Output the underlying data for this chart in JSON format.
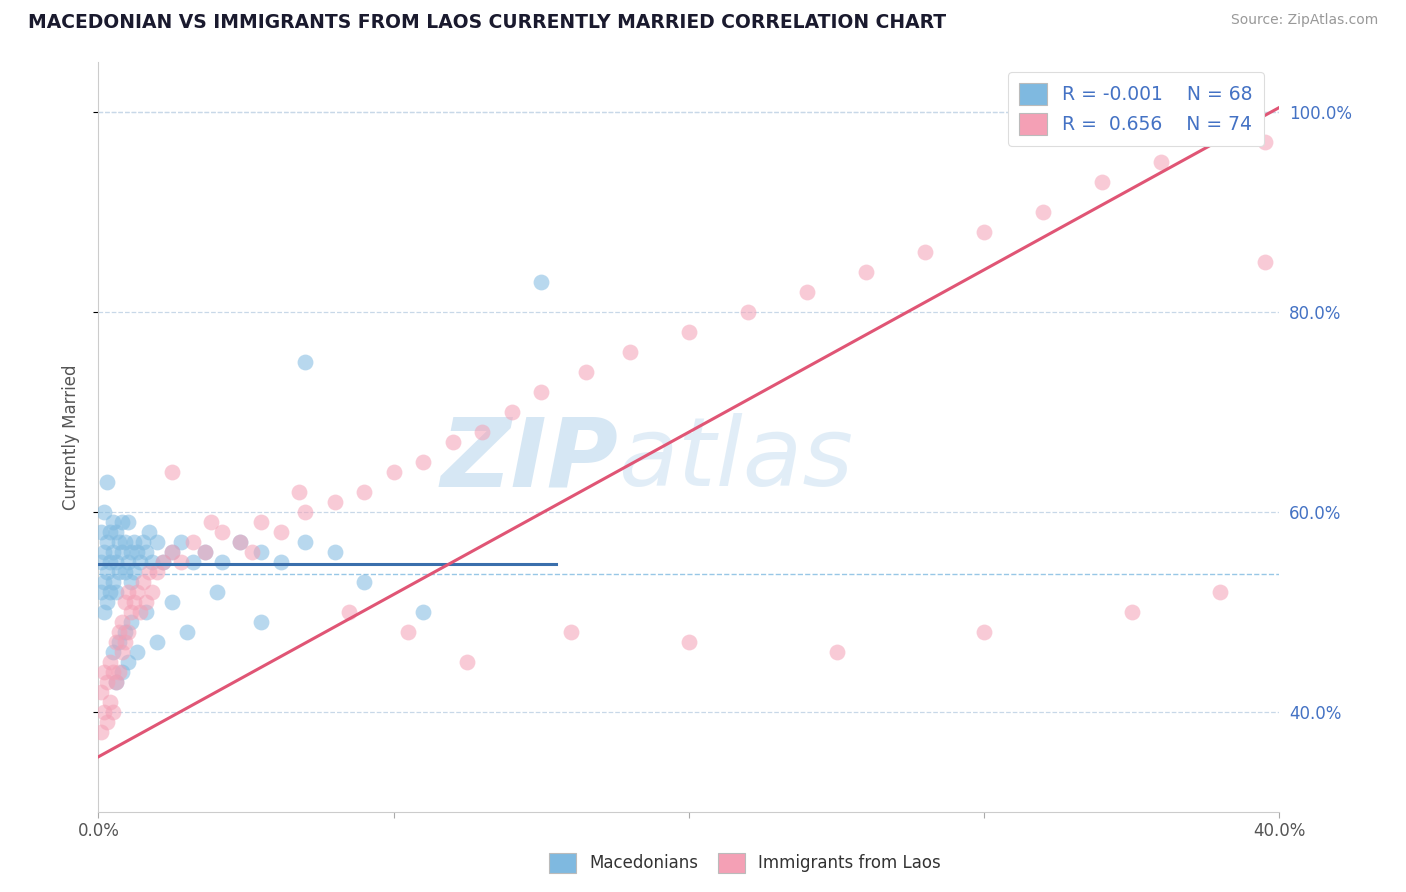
{
  "title": "MACEDONIAN VS IMMIGRANTS FROM LAOS CURRENTLY MARRIED CORRELATION CHART",
  "source": "Source: ZipAtlas.com",
  "ylabel": "Currently Married",
  "xlim": [
    0.0,
    0.4
  ],
  "ylim": [
    0.3,
    1.05
  ],
  "blue_R": -0.001,
  "blue_N": 68,
  "pink_R": 0.656,
  "pink_N": 74,
  "blue_color": "#7fb9e0",
  "pink_color": "#f4a0b5",
  "blue_line_color": "#3a6fac",
  "pink_line_color": "#e05575",
  "dashed_line_color": "#7fb9e0",
  "dashed_line_y": 0.538,
  "blue_line_xmax": 0.155,
  "pink_line_x0": 0.0,
  "pink_line_x1": 0.4,
  "pink_line_y0": 0.355,
  "pink_line_y1": 1.005,
  "blue_line_y": 0.548,
  "watermark_zip": "ZIP",
  "watermark_atlas": "atlas",
  "legend_blue_label": "Macedonians",
  "legend_pink_label": "Immigrants from Laos",
  "background_color": "#ffffff",
  "grid_color": "#c8d8e8",
  "ytick_color": "#4472c4",
  "legend_text_color": "#4472c4",
  "source_color": "#999999",
  "ylabel_color": "#555555",
  "xtick_color": "#555555",
  "blue_x": [
    0.001,
    0.001,
    0.001,
    0.002,
    0.002,
    0.002,
    0.002,
    0.003,
    0.003,
    0.003,
    0.003,
    0.004,
    0.004,
    0.004,
    0.005,
    0.005,
    0.005,
    0.006,
    0.006,
    0.006,
    0.007,
    0.007,
    0.008,
    0.008,
    0.009,
    0.009,
    0.01,
    0.01,
    0.011,
    0.011,
    0.012,
    0.012,
    0.013,
    0.014,
    0.015,
    0.016,
    0.017,
    0.018,
    0.02,
    0.022,
    0.025,
    0.028,
    0.032,
    0.036,
    0.042,
    0.048,
    0.055,
    0.062,
    0.07,
    0.08,
    0.005,
    0.006,
    0.007,
    0.008,
    0.009,
    0.01,
    0.011,
    0.013,
    0.016,
    0.02,
    0.025,
    0.03,
    0.04,
    0.055,
    0.07,
    0.09,
    0.11,
    0.15
  ],
  "blue_y": [
    0.55,
    0.52,
    0.58,
    0.53,
    0.56,
    0.5,
    0.6,
    0.54,
    0.57,
    0.51,
    0.63,
    0.55,
    0.58,
    0.52,
    0.56,
    0.53,
    0.59,
    0.55,
    0.58,
    0.52,
    0.57,
    0.54,
    0.56,
    0.59,
    0.54,
    0.57,
    0.55,
    0.59,
    0.56,
    0.53,
    0.57,
    0.54,
    0.56,
    0.55,
    0.57,
    0.56,
    0.58,
    0.55,
    0.57,
    0.55,
    0.56,
    0.57,
    0.55,
    0.56,
    0.55,
    0.57,
    0.56,
    0.55,
    0.57,
    0.56,
    0.46,
    0.43,
    0.47,
    0.44,
    0.48,
    0.45,
    0.49,
    0.46,
    0.5,
    0.47,
    0.51,
    0.48,
    0.52,
    0.49,
    0.75,
    0.53,
    0.5,
    0.83
  ],
  "pink_x": [
    0.001,
    0.001,
    0.002,
    0.002,
    0.003,
    0.003,
    0.004,
    0.004,
    0.005,
    0.005,
    0.006,
    0.006,
    0.007,
    0.007,
    0.008,
    0.008,
    0.009,
    0.009,
    0.01,
    0.01,
    0.011,
    0.012,
    0.013,
    0.014,
    0.015,
    0.016,
    0.017,
    0.018,
    0.02,
    0.022,
    0.025,
    0.028,
    0.032,
    0.036,
    0.042,
    0.048,
    0.055,
    0.062,
    0.07,
    0.08,
    0.09,
    0.1,
    0.11,
    0.12,
    0.13,
    0.14,
    0.15,
    0.165,
    0.18,
    0.2,
    0.22,
    0.24,
    0.26,
    0.28,
    0.3,
    0.32,
    0.34,
    0.36,
    0.38,
    0.395,
    0.025,
    0.038,
    0.052,
    0.068,
    0.085,
    0.105,
    0.125,
    0.16,
    0.2,
    0.25,
    0.3,
    0.35,
    0.38,
    0.395
  ],
  "pink_y": [
    0.42,
    0.38,
    0.44,
    0.4,
    0.43,
    0.39,
    0.45,
    0.41,
    0.44,
    0.4,
    0.43,
    0.47,
    0.44,
    0.48,
    0.46,
    0.49,
    0.47,
    0.51,
    0.48,
    0.52,
    0.5,
    0.51,
    0.52,
    0.5,
    0.53,
    0.51,
    0.54,
    0.52,
    0.54,
    0.55,
    0.56,
    0.55,
    0.57,
    0.56,
    0.58,
    0.57,
    0.59,
    0.58,
    0.6,
    0.61,
    0.62,
    0.64,
    0.65,
    0.67,
    0.68,
    0.7,
    0.72,
    0.74,
    0.76,
    0.78,
    0.8,
    0.82,
    0.84,
    0.86,
    0.88,
    0.9,
    0.93,
    0.95,
    0.98,
    0.97,
    0.64,
    0.59,
    0.56,
    0.62,
    0.5,
    0.48,
    0.45,
    0.48,
    0.47,
    0.46,
    0.48,
    0.5,
    0.52,
    0.85
  ]
}
